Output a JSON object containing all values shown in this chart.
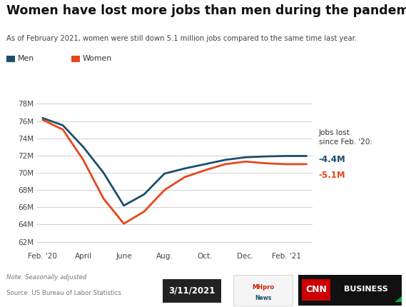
{
  "title": "Women have lost more jobs than men during the pandemic",
  "subtitle": "As of February 2021, women were still down 5.1 million jobs compared to the same time last year.",
  "legend_men": "Men",
  "legend_women": "Women",
  "color_men": "#1b4f6e",
  "color_women": "#e8451e",
  "annotation_header": "Jobs lost\nsince Feb. '20:",
  "annotation_men": "-4.4M",
  "annotation_women": "-5.1M",
  "note": "Note: Seasonally adjusted",
  "source": "Source: US Bureau of Labor Statistics",
  "date_label": "3/11/2021",
  "x_labels": [
    "Feb. '20",
    "April",
    "June",
    "Aug.",
    "Oct.",
    "Dec.",
    "Feb. '21"
  ],
  "y_ticks": [
    62,
    64,
    66,
    68,
    70,
    72,
    74,
    76,
    78
  ],
  "ylim": [
    61.2,
    79.0
  ],
  "men_data": [
    76.35,
    75.5,
    73.0,
    70.0,
    66.2,
    67.5,
    69.9,
    70.5,
    71.0,
    71.5,
    71.8,
    71.9,
    71.95,
    71.95
  ],
  "women_data": [
    76.15,
    75.0,
    71.5,
    67.0,
    64.1,
    65.5,
    68.0,
    69.5,
    70.3,
    71.0,
    71.3,
    71.1,
    71.0,
    71.0
  ],
  "x_positions": [
    0,
    0.5,
    1,
    1.5,
    2,
    2.5,
    3,
    3.5,
    4,
    4.5,
    5,
    5.5,
    6,
    6.5
  ],
  "x_tick_positions": [
    0,
    1,
    2,
    3,
    4,
    5,
    6
  ],
  "background_color": "#ffffff",
  "grid_color": "#d0d0d0"
}
